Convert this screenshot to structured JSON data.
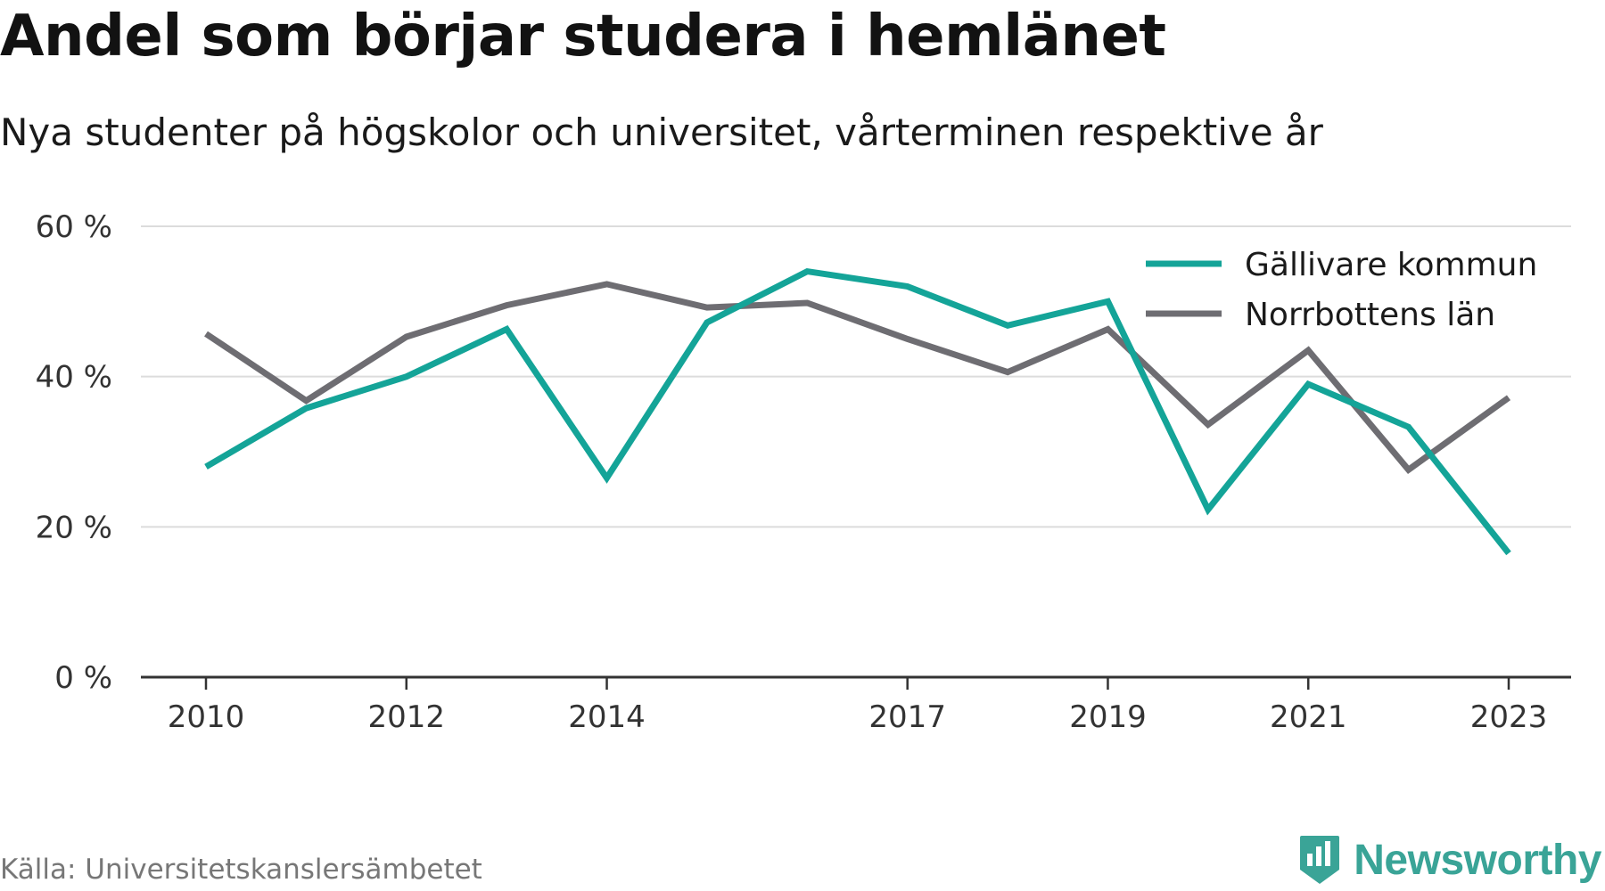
{
  "title": "Andel som börjar studera i hemlänet",
  "subtitle": "Nya studenter på högskolor och universitet, vårterminen respektive år",
  "source": "Källa: Universitetskanslersämbetet",
  "brand": {
    "name": "Newsworthy",
    "icon": "newsworthy-logo-icon",
    "color": "#3aa497"
  },
  "chart_data": {
    "type": "line",
    "title": "Andel som börjar studera i hemlänet",
    "subtitle": "Nya studenter på högskolor och universitet, vårterminen respektive år",
    "x": [
      2010,
      2011,
      2012,
      2013,
      2014,
      2015,
      2016,
      2017,
      2018,
      2019,
      2020,
      2021,
      2022,
      2023
    ],
    "x_tick_labels": [
      "2010",
      "2012",
      "2014",
      "2017",
      "2019",
      "2021",
      "2023"
    ],
    "y_ticks": [
      0,
      20,
      40,
      60
    ],
    "y_tick_labels": [
      "0 %",
      "20 %",
      "40 %",
      "60 %"
    ],
    "ylim": [
      0,
      60
    ],
    "grid": true,
    "legend_position": "top-right",
    "series": [
      {
        "name": "Gällivare kommun",
        "color": "#14a498",
        "values": [
          28,
          35.8,
          40,
          46.3,
          26.5,
          47.2,
          54,
          52,
          46.8,
          50,
          22.3,
          39,
          33.3,
          16.5
        ]
      },
      {
        "name": "Norrbottens län",
        "color": "#6e6d72",
        "values": [
          45.7,
          36.8,
          45.3,
          49.5,
          52.3,
          49.2,
          49.8,
          45,
          40.6,
          46.3,
          33.6,
          43.5,
          27.6,
          37.2
        ]
      }
    ]
  }
}
